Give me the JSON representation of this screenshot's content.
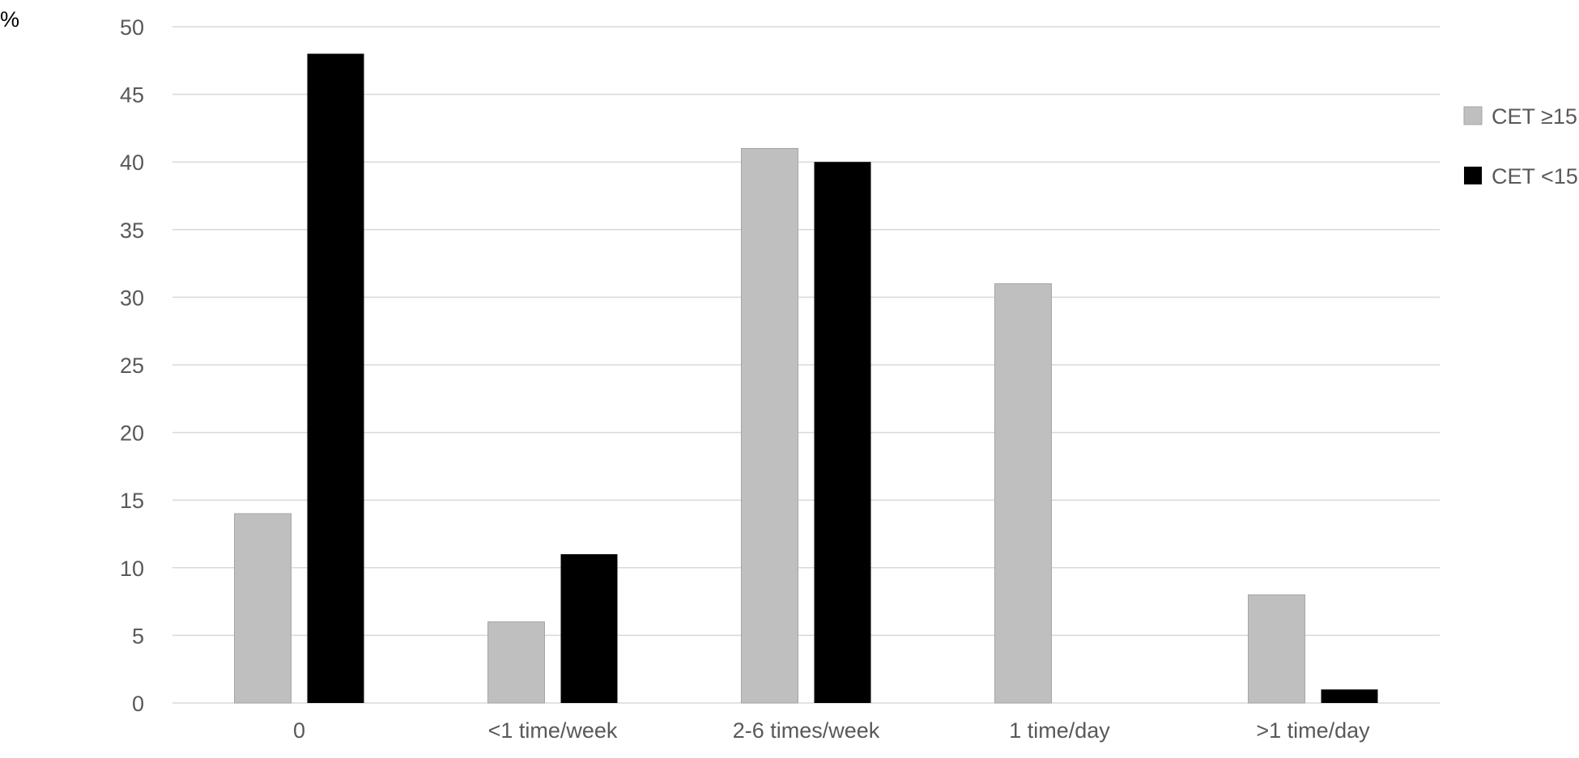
{
  "chart_data": {
    "type": "bar",
    "title": "",
    "xlabel": "",
    "ylabel": "%",
    "ylim": [
      0,
      50
    ],
    "yticks": [
      0,
      5,
      10,
      15,
      20,
      25,
      30,
      35,
      40,
      45,
      50
    ],
    "grid": true,
    "legend_position": "right",
    "categories": [
      "0",
      "<1 time/week",
      "2-6 times/week",
      "1 time/day",
      ">1 time/day"
    ],
    "series": [
      {
        "name": "CET ≥15",
        "color": "#bfbfbf",
        "values": [
          14,
          6,
          41,
          31,
          8
        ]
      },
      {
        "name": "CET <15",
        "color": "#000000",
        "values": [
          48,
          11,
          40,
          0,
          1
        ]
      }
    ]
  }
}
